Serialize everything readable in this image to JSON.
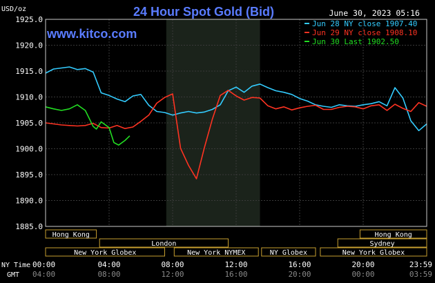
{
  "chart_data": {
    "type": "line",
    "title": "24 Hour Spot Gold (Bid)",
    "unit_label": "USD/oz",
    "watermark": "www.kitco.com",
    "timestamp": "June 30, 2023 05:16",
    "ylim": [
      1885,
      1925
    ],
    "y_ticks": [
      "1925.0",
      "1920.0",
      "1915.0",
      "1910.0",
      "1905.0",
      "1900.0",
      "1895.0",
      "1890.0",
      "1885.0"
    ],
    "x_range_hours": [
      0,
      24
    ],
    "x_label_ny": "NY Time",
    "x_label_gmt": "GMT",
    "x_ticks_ny": [
      "00:00",
      "04:00",
      "08:00",
      "12:00",
      "16:00",
      "20:00",
      "23:59"
    ],
    "x_ticks_gmt": [
      "04:00",
      "08:00",
      "12:00",
      "16:00",
      "20:00",
      "00:00",
      "03:59"
    ],
    "shaded_range_hours": [
      7.6,
      13.5
    ],
    "legend": [
      {
        "label": "Jun 28 NY close 1907.40",
        "color": "#33ccff"
      },
      {
        "label": "Jun 29 NY close 1908.10",
        "color": "#ff3322"
      },
      {
        "label": "Jun 30 Last 1902.50",
        "color": "#22dd22"
      }
    ],
    "series": [
      {
        "name": "Jun 28 NY close 1907.40",
        "color": "#33ccff",
        "x": [
          0,
          0.5,
          1,
          1.5,
          2,
          2.5,
          3,
          3.5,
          4,
          4.5,
          5,
          5.5,
          6,
          6.5,
          7,
          7.5,
          8,
          8.5,
          9,
          9.5,
          10,
          10.5,
          11,
          11.5,
          12,
          12.5,
          13,
          13.5,
          14,
          14.5,
          15,
          15.5,
          16,
          16.5,
          17,
          17.5,
          18,
          18.5,
          19,
          19.5,
          20,
          20.5,
          21,
          21.5,
          22,
          22.5,
          23,
          23.5,
          24
        ],
        "y": [
          1914.6,
          1915.4,
          1915.6,
          1915.8,
          1915.3,
          1915.5,
          1914.8,
          1910.8,
          1910.3,
          1909.6,
          1909.1,
          1910.2,
          1910.5,
          1908.4,
          1907.2,
          1907.0,
          1906.5,
          1906.9,
          1907.2,
          1906.9,
          1907.1,
          1907.6,
          1908.5,
          1911.2,
          1911.9,
          1910.9,
          1912.1,
          1912.5,
          1911.8,
          1911.2,
          1910.9,
          1910.5,
          1909.7,
          1909.2,
          1908.5,
          1908.2,
          1908.0,
          1908.5,
          1908.3,
          1908.2,
          1908.5,
          1908.7,
          1909.1,
          1908.3,
          1911.8,
          1909.8,
          1905.4,
          1903.5,
          1904.8
        ]
      },
      {
        "name": "Jun 29 NY close 1908.10",
        "color": "#ff3322",
        "x": [
          0,
          0.5,
          1,
          1.5,
          2,
          2.5,
          3,
          3.5,
          4,
          4.5,
          5,
          5.5,
          6,
          6.5,
          7,
          7.5,
          8,
          8.5,
          9,
          9.5,
          10,
          10.5,
          11,
          11.5,
          12,
          12.5,
          13,
          13.5,
          14,
          14.5,
          15,
          15.5,
          16,
          16.5,
          17,
          17.5,
          18,
          18.5,
          19,
          19.5,
          20,
          20.5,
          21,
          21.5,
          22,
          22.5,
          23,
          23.5,
          24
        ],
        "y": [
          1905.0,
          1904.8,
          1904.6,
          1904.5,
          1904.4,
          1904.5,
          1904.9,
          1904.1,
          1904.0,
          1904.5,
          1903.9,
          1904.2,
          1905.3,
          1906.5,
          1908.8,
          1909.9,
          1910.6,
          1900.1,
          1896.8,
          1894.2,
          1900.2,
          1905.7,
          1910.3,
          1911.3,
          1910.2,
          1909.4,
          1909.9,
          1909.8,
          1908.3,
          1907.7,
          1908.1,
          1907.5,
          1907.9,
          1908.2,
          1908.4,
          1907.6,
          1907.6,
          1908.0,
          1908.2,
          1908.1,
          1907.7,
          1908.3,
          1908.5,
          1907.4,
          1908.6,
          1907.8,
          1907.2,
          1908.9,
          1908.2
        ]
      },
      {
        "name": "Jun 30 Last 1902.50",
        "color": "#22dd22",
        "x": [
          0,
          0.5,
          1,
          1.5,
          2,
          2.5,
          3,
          3.2,
          3.5,
          4,
          4.3,
          4.6,
          5,
          5.3
        ],
        "y": [
          1908.1,
          1907.7,
          1907.4,
          1907.7,
          1908.5,
          1907.4,
          1904.3,
          1903.8,
          1905.2,
          1904.1,
          1901.2,
          1900.7,
          1901.6,
          1902.5
        ]
      }
    ],
    "sessions": [
      {
        "label": "Hong Kong",
        "row": 0,
        "start": 0,
        "end": 3.2
      },
      {
        "label": "Hong Kong",
        "row": 0,
        "start": 19.8,
        "end": 24
      },
      {
        "label": "London",
        "row": 1,
        "start": 3.4,
        "end": 11.5
      },
      {
        "label": "Sydney",
        "row": 1,
        "start": 18.4,
        "end": 24
      },
      {
        "label": "New York Globex",
        "row": 2,
        "start": 0,
        "end": 7.5
      },
      {
        "label": "New York NYMEX",
        "row": 2,
        "start": 8.1,
        "end": 13.4
      },
      {
        "label": "NY Globex",
        "row": 2,
        "start": 13.6,
        "end": 17.0
      },
      {
        "label": "New York Globex",
        "row": 2,
        "start": 17.3,
        "end": 24
      }
    ]
  }
}
